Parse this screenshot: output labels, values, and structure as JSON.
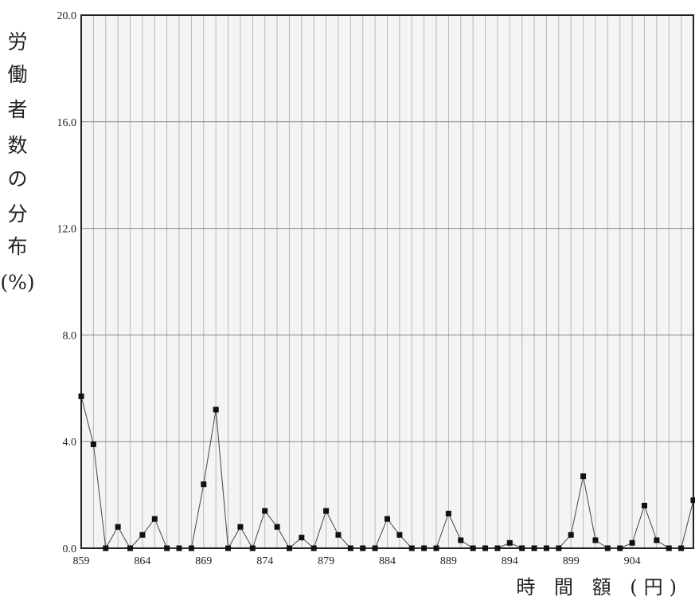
{
  "chart_data": {
    "type": "line",
    "ylabel": "労働者数の分布(%)",
    "ylabel_lines": [
      "労",
      "働",
      "者",
      "数",
      "の",
      "分",
      "布",
      "(%)"
    ],
    "xlabel": "時 間 額 (円)",
    "ylim": [
      0,
      20
    ],
    "xlim": [
      859,
      909
    ],
    "y_ticks": [
      "0.0",
      "4.0",
      "8.0",
      "12.0",
      "16.0",
      "20.0"
    ],
    "x_ticks": [
      "859",
      "864",
      "869",
      "874",
      "879",
      "884",
      "889",
      "894",
      "899",
      "904"
    ],
    "grid": true,
    "series": [
      {
        "x": [
          859,
          860,
          861,
          862,
          863,
          864,
          865,
          866,
          867,
          868,
          869,
          870,
          871,
          872,
          873,
          874,
          875,
          876,
          877,
          878,
          879,
          880,
          881,
          882,
          883,
          884,
          885,
          886,
          887,
          888,
          889,
          890,
          891,
          892,
          893,
          894,
          895,
          896,
          897,
          898,
          899,
          900,
          901,
          902,
          903,
          904,
          905,
          906,
          907,
          908,
          909
        ],
        "values": [
          5.7,
          3.9,
          0,
          0.8,
          0,
          0.5,
          1.1,
          0,
          0,
          0,
          2.4,
          5.2,
          0,
          0.8,
          0,
          1.4,
          0.8,
          0,
          0.4,
          0,
          1.4,
          0.5,
          0,
          0,
          0,
          1.1,
          0.5,
          0,
          0,
          0,
          1.3,
          0.3,
          0,
          0,
          0,
          0.2,
          0,
          0,
          0,
          0,
          0.5,
          2.7,
          0.3,
          0,
          0,
          0.2,
          1.6,
          0.3,
          0,
          0,
          1.8
        ]
      }
    ]
  }
}
